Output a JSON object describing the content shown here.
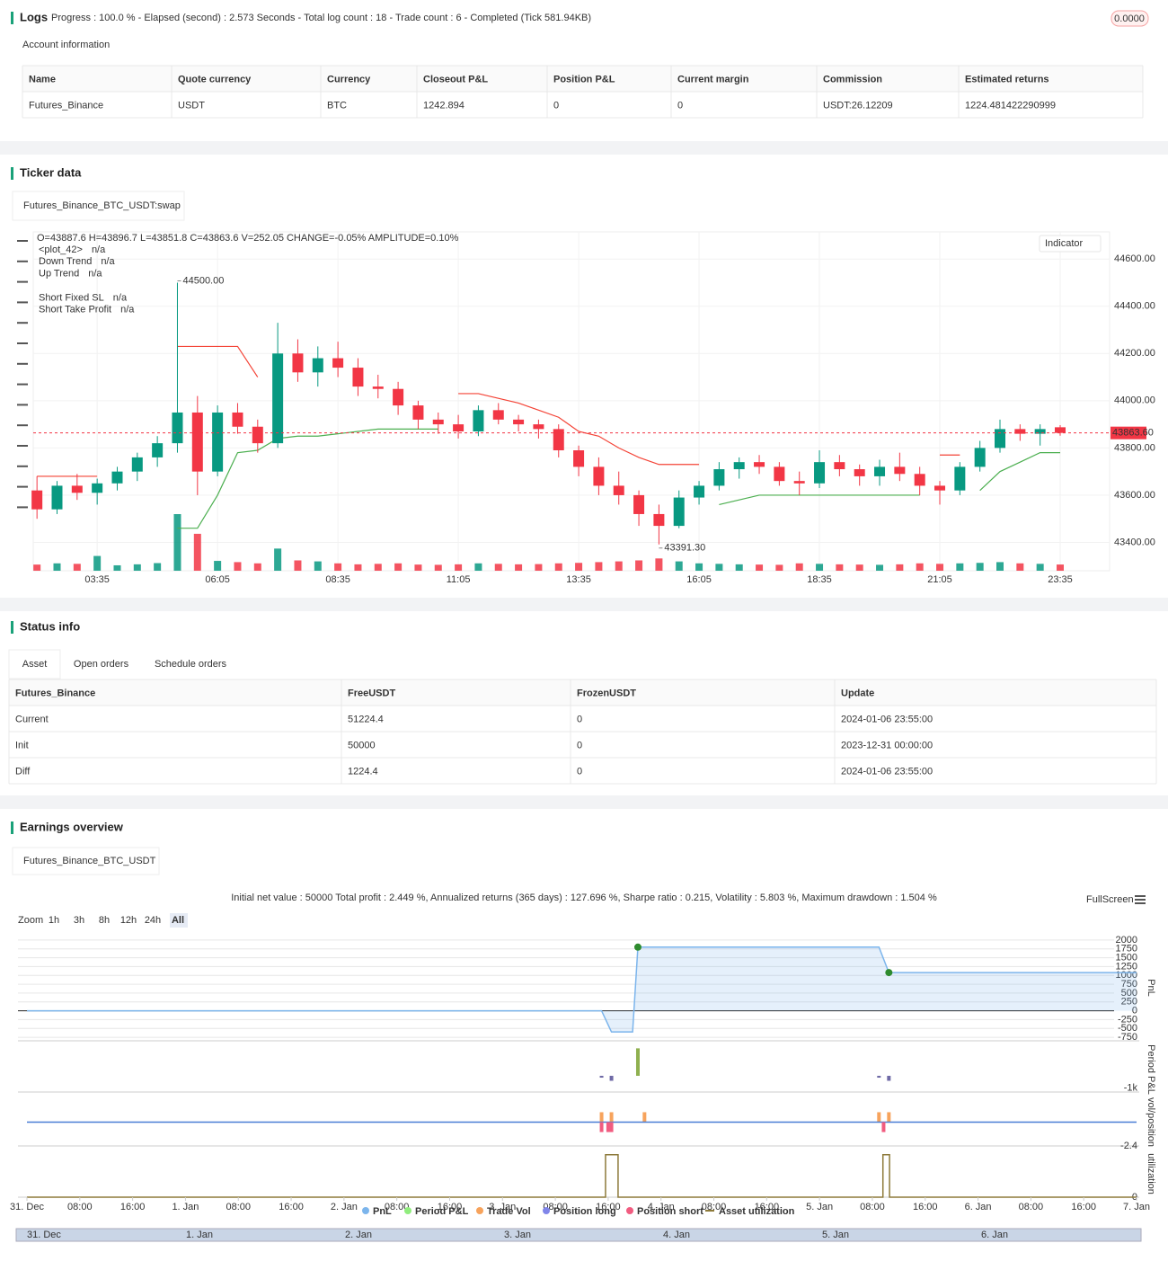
{
  "logs": {
    "title": "Logs",
    "summary": "Progress : 100.0 % - Elapsed (second) : 2.573  Seconds - Total log count : 18 - Trade count : 6 - Completed (Tick 581.94KB)",
    "badge": "0.0000"
  },
  "account": {
    "title": "Account information",
    "columns": [
      "Name",
      "Quote currency",
      "Currency",
      "Closeout P&L",
      "Position P&L",
      "Current margin",
      "Commission",
      "Estimated returns"
    ],
    "rows": [
      [
        "Futures_Binance",
        "USDT",
        "BTC",
        "1242.894",
        "0",
        "0",
        "USDT:26.12209",
        "1224.481422290999"
      ]
    ]
  },
  "ticker": {
    "title": "Ticker data",
    "tab": "Futures_Binance_BTC_USDT:swap",
    "ohlc_text": "O=43887.6 H=43896.7 L=43851.8 C=43863.6 V=252.05 CHANGE=-0.05% AMPLITUDE=0.10%",
    "legend": [
      {
        "label": "<plot_42>",
        "value": "n/a",
        "color": "#f59b23"
      },
      {
        "label": "Down Trend",
        "value": "n/a",
        "color": "#9c5fcf"
      },
      {
        "label": "Up Trend",
        "value": "n/a",
        "color": "#2962ff"
      },
      {
        "label": "Short Fixed SL",
        "value": "n/a",
        "color": "#f23645"
      },
      {
        "label": "Short Take Profit",
        "value": "n/a",
        "color": "#22b5c9"
      }
    ],
    "indicator_button": "Indicator"
  },
  "status": {
    "title": "Status info",
    "tabs": [
      "Asset",
      "Open orders",
      "Schedule orders"
    ],
    "columns": [
      "Futures_Binance",
      "FreeUSDT",
      "FrozenUSDT",
      "Update"
    ],
    "rows": [
      [
        "Current",
        "51224.4",
        "0",
        "2024-01-06 23:55:00"
      ],
      [
        "Init",
        "50000",
        "0",
        "2023-12-31 00:00:00"
      ],
      [
        "Diff",
        "1224.4",
        "0",
        "2024-01-06 23:55:00"
      ]
    ]
  },
  "earnings": {
    "title": "Earnings overview",
    "tab": "Futures_Binance_BTC_USDT",
    "summary": "Initial net value : 50000 Total profit : 2.449 %, Annualized returns (365 days) : 127.696 %, Sharpe ratio : 0.215, Volatility : 5.803 %, Maximum drawdown : 1.504 %",
    "fullscreen": "FullScreen",
    "zoom_label": "Zoom",
    "zoom": [
      "1h",
      "3h",
      "8h",
      "12h",
      "24h",
      "All"
    ],
    "navigator": [
      "31. Dec",
      "1. Jan",
      "2. Jan",
      "3. Jan",
      "4. Jan",
      "5. Jan",
      "6. Jan"
    ]
  },
  "chart_data": [
    {
      "type": "candlestick",
      "up_color": "#089981",
      "down_color": "#f23645",
      "categories": [
        null,
        null,
        null,
        "03:35",
        null,
        null,
        null,
        null,
        null,
        "06:05",
        null,
        null,
        null,
        null,
        null,
        "08:35",
        null,
        null,
        null,
        null,
        null,
        "11:05",
        null,
        null,
        null,
        null,
        null,
        "13:35",
        null,
        null,
        null,
        null,
        null,
        "16:05",
        null,
        null,
        null,
        null,
        null,
        "18:35",
        null,
        null,
        null,
        null,
        null,
        "21:05",
        null,
        null,
        null,
        null,
        null,
        "23:35"
      ],
      "open": [
        43620,
        43540,
        43640,
        43610,
        43650,
        43700,
        43760,
        43820,
        43950,
        43700,
        43950,
        43890,
        43820,
        44200,
        44120,
        44180,
        44140,
        44060,
        44050,
        43980,
        43920,
        43900,
        43870,
        43960,
        43920,
        43900,
        43880,
        43790,
        43720,
        43640,
        43600,
        43520,
        43470,
        43590,
        43640,
        43710,
        43740,
        43720,
        43660,
        43650,
        43740,
        43710,
        43680,
        43720,
        43690,
        43640,
        43620,
        43720,
        43800,
        43880,
        43860,
        43887.6
      ],
      "high": [
        43680,
        43660,
        43690,
        43670,
        43720,
        43780,
        43850,
        44500,
        44020,
        43980,
        43990,
        43920,
        44330,
        44260,
        44230,
        44250,
        44180,
        44110,
        44080,
        44000,
        43950,
        43940,
        43980,
        43990,
        43940,
        43920,
        43900,
        43810,
        43760,
        43700,
        43620,
        43560,
        43620,
        43660,
        43740,
        43760,
        43770,
        43740,
        43700,
        43790,
        43770,
        43730,
        43750,
        43780,
        43720,
        43660,
        43740,
        43830,
        43920,
        43900,
        43900,
        43896.7
      ],
      "low": [
        43500,
        43520,
        43580,
        43560,
        43620,
        43660,
        43720,
        43780,
        43600,
        43680,
        43860,
        43780,
        43800,
        44080,
        44060,
        44100,
        44020,
        44010,
        43940,
        43880,
        43860,
        43840,
        43850,
        43900,
        43870,
        43840,
        43760,
        43680,
        43600,
        43560,
        43470,
        43391.3,
        43460,
        43560,
        43620,
        43670,
        43690,
        43640,
        43600,
        43630,
        43680,
        43640,
        43640,
        43660,
        43600,
        43560,
        43600,
        43700,
        43780,
        43830,
        43810,
        43851.8
      ],
      "close": [
        43540,
        43640,
        43610,
        43650,
        43700,
        43760,
        43820,
        43950,
        43700,
        43950,
        43890,
        43820,
        44200,
        44120,
        44180,
        44140,
        44060,
        44050,
        43980,
        43920,
        43900,
        43870,
        43960,
        43920,
        43900,
        43880,
        43790,
        43720,
        43640,
        43600,
        43520,
        43470,
        43590,
        43640,
        43710,
        43740,
        43720,
        43660,
        43650,
        43740,
        43710,
        43680,
        43720,
        43690,
        43640,
        43620,
        43720,
        43800,
        43880,
        43860,
        43880,
        43863.6
      ],
      "volumes": [
        250,
        300,
        280,
        600,
        220,
        260,
        310,
        2300,
        1500,
        400,
        350,
        300,
        900,
        420,
        380,
        300,
        260,
        280,
        300,
        250,
        240,
        260,
        300,
        280,
        260,
        270,
        300,
        320,
        350,
        380,
        420,
        500,
        380,
        300,
        280,
        260,
        250,
        240,
        300,
        280,
        260,
        250,
        240,
        260,
        300,
        280,
        300,
        320,
        350,
        300,
        280,
        252.05
      ],
      "series": [
        {
          "name": "Down Trend",
          "color": "#f44336",
          "values": [
            43680,
            43680,
            43680,
            43680,
            null,
            null,
            null,
            44230,
            44230,
            44230,
            44230,
            44100,
            null,
            null,
            null,
            null,
            null,
            null,
            null,
            null,
            null,
            44030,
            44030,
            44010,
            43990,
            43960,
            43930,
            43870,
            43850,
            43800,
            43760,
            43730,
            43730,
            43730,
            null,
            null,
            null,
            null,
            null,
            null,
            null,
            null,
            null,
            null,
            null,
            43770,
            43770,
            null,
            null,
            null,
            null,
            null
          ]
        },
        {
          "name": "Up Trend",
          "color": "#4caf50",
          "values": [
            null,
            null,
            null,
            null,
            null,
            null,
            null,
            43460,
            43460,
            43600,
            43780,
            43790,
            43840,
            43850,
            43850,
            43860,
            43870,
            43880,
            43880,
            43880,
            43880,
            null,
            null,
            null,
            null,
            null,
            null,
            null,
            null,
            null,
            null,
            null,
            null,
            null,
            43560,
            43580,
            43600,
            43600,
            43600,
            43600,
            43600,
            43600,
            43600,
            43600,
            43600,
            null,
            null,
            43620,
            43700,
            43740,
            43780,
            43780
          ]
        }
      ],
      "annotations": [
        {
          "value": 44500,
          "label": "44500.00"
        },
        {
          "value": 43391.3,
          "label": "43391.30"
        }
      ],
      "last_price": {
        "value": 43863.6,
        "label": "43863.60"
      },
      "ylim": [
        43280,
        44715
      ],
      "yticks": [
        {
          "value": 43400,
          "label": "43400.00"
        },
        {
          "value": 43600,
          "label": "43600.00"
        },
        {
          "value": 43800,
          "label": "43800.00"
        },
        {
          "value": 44000,
          "label": "44000.00"
        },
        {
          "value": 44200,
          "label": "44200.00"
        },
        {
          "value": 44400,
          "label": "44400.00"
        },
        {
          "value": 44600,
          "label": "44600.00"
        }
      ],
      "grid": true
    },
    {
      "type": "area",
      "y_label": "PnL",
      "series": [
        {
          "name": "PnL",
          "color": "#7cb5ec",
          "x": [
            0,
            87,
            88.5,
            91.7,
            92.5,
            129,
            130.5,
            168
          ],
          "values": [
            0,
            0,
            -600,
            -600,
            1800,
            1800,
            1080,
            1080
          ]
        }
      ],
      "xlim": [
        0,
        168
      ],
      "ylim": [
        -850,
        2150
      ],
      "yticks": [
        2000,
        1750,
        1500,
        1250,
        1000,
        750,
        500,
        250,
        0,
        -250,
        -500,
        -750
      ],
      "grid": true
    },
    {
      "type": "bar",
      "y_label": "Period P&L",
      "series": [
        {
          "name": "Period P&L",
          "color": "#90ed7d",
          "bar_color": "#8fb04f",
          "negative_color": "#6f6aa6",
          "x": [
            87,
            88.5,
            92.5,
            129,
            130.5
          ],
          "values": [
            -150,
            -400,
            2200,
            -150,
            -400
          ]
        }
      ],
      "xlim": [
        0,
        168
      ],
      "ylim": [
        -1300,
        2300
      ],
      "yticks": [
        {
          "value": -1000,
          "label": "-1k"
        }
      ]
    },
    {
      "type": "bar",
      "y_label": "vol/position",
      "series": [
        {
          "name": "Trade Vol",
          "color": "#f7a35c",
          "x": [
            87,
            88.5,
            93.5,
            129,
            130.5
          ],
          "values": [
            1,
            1,
            1,
            1,
            1
          ]
        },
        {
          "name": "Position long",
          "color": "#8085e9",
          "line_color": "#4a7fd6",
          "kind": "line",
          "x": [
            0,
            168
          ],
          "values": [
            0,
            0
          ]
        },
        {
          "name": "Position short",
          "color": "#f15c80",
          "x": [
            87,
            88,
            88.5,
            129.7
          ],
          "values": [
            -1,
            -1,
            -1,
            -1
          ]
        }
      ],
      "xlim": [
        0,
        168
      ],
      "ylim": [
        -2.4,
        2.4
      ],
      "yticks": [
        -2.4
      ]
    },
    {
      "type": "line",
      "y_label": "utilization",
      "series": [
        {
          "name": "Asset utilization",
          "color": "#8d7a3a",
          "x": [
            0,
            87.6,
            87.6,
            89.5,
            89.5,
            129.6,
            129.6,
            130.6,
            130.6,
            168
          ],
          "values": [
            0,
            0,
            1,
            1,
            0,
            0,
            1,
            1,
            0,
            0
          ]
        }
      ],
      "xlim": [
        0,
        168
      ],
      "ylim": [
        0,
        1.1
      ],
      "yticks": [
        0
      ],
      "xticks": [
        {
          "value": 0,
          "label": "31. Dec"
        },
        {
          "value": 8,
          "label": "08:00"
        },
        {
          "value": 16,
          "label": "16:00"
        },
        {
          "value": 24,
          "label": "1. Jan"
        },
        {
          "value": 32,
          "label": "08:00"
        },
        {
          "value": 40,
          "label": "16:00"
        },
        {
          "value": 48,
          "label": "2. Jan"
        },
        {
          "value": 56,
          "label": "08:00"
        },
        {
          "value": 64,
          "label": "16:00"
        },
        {
          "value": 72,
          "label": "3. Jan"
        },
        {
          "value": 80,
          "label": "08:00"
        },
        {
          "value": 88,
          "label": "16:00"
        },
        {
          "value": 96,
          "label": "4. Jan"
        },
        {
          "value": 104,
          "label": "08:00"
        },
        {
          "value": 112,
          "label": "16:00"
        },
        {
          "value": 120,
          "label": "5. Jan"
        },
        {
          "value": 128,
          "label": "08:00"
        },
        {
          "value": 136,
          "label": "16:00"
        },
        {
          "value": 144,
          "label": "6. Jan"
        },
        {
          "value": 152,
          "label": "08:00"
        },
        {
          "value": 160,
          "label": "16:00"
        },
        {
          "value": 168,
          "label": "7. Jan"
        }
      ]
    }
  ]
}
